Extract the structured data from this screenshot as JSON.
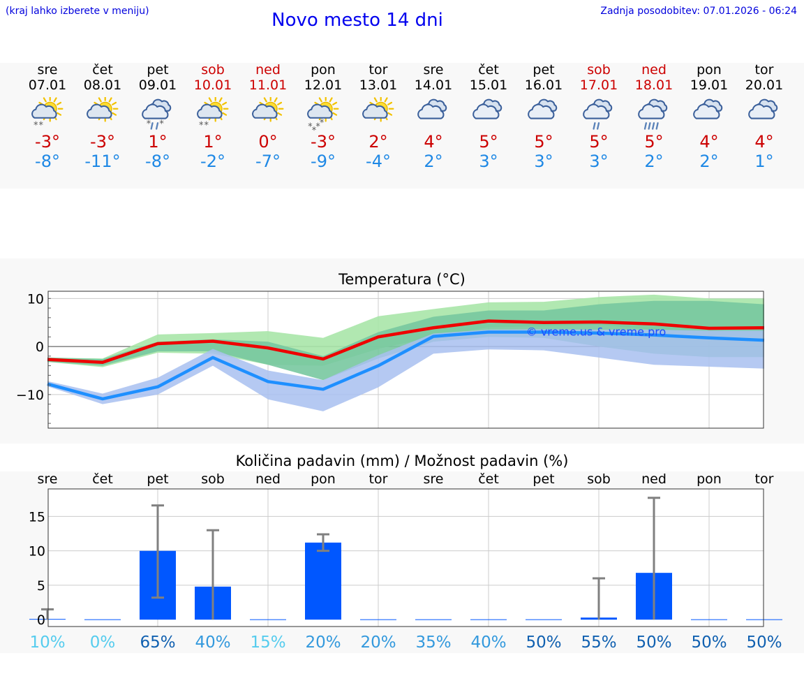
{
  "header": {
    "menu_hint": "(kraj lahko izberete v meniju)",
    "title": "Novo mesto 14 dni",
    "last_update": "Zadnja posodobitev: 07.01.2026 - 06:24"
  },
  "days": [
    {
      "name": "sre",
      "date": "07.01",
      "weekend": false,
      "icon": "sun-cloud-snow-icon",
      "tmax": "-3°",
      "tmin": "-8°"
    },
    {
      "name": "čet",
      "date": "08.01",
      "weekend": false,
      "icon": "sun-cloud-icon",
      "tmax": "-3°",
      "tmin": "-11°"
    },
    {
      "name": "pet",
      "date": "09.01",
      "weekend": false,
      "icon": "cloud-sleet-icon",
      "tmax": "1°",
      "tmin": "-8°"
    },
    {
      "name": "sob",
      "date": "10.01",
      "weekend": true,
      "icon": "sun-cloud-snow-icon",
      "tmax": "1°",
      "tmin": "-2°"
    },
    {
      "name": "ned",
      "date": "11.01",
      "weekend": true,
      "icon": "sun-cloud-icon",
      "tmax": "0°",
      "tmin": "-7°"
    },
    {
      "name": "pon",
      "date": "12.01",
      "weekend": false,
      "icon": "sun-cloud-heavy-snow-icon",
      "tmax": "-3°",
      "tmin": "-9°"
    },
    {
      "name": "tor",
      "date": "13.01",
      "weekend": false,
      "icon": "sun-cloud-icon",
      "tmax": "2°",
      "tmin": "-4°"
    },
    {
      "name": "sre",
      "date": "14.01",
      "weekend": false,
      "icon": "cloud-icon",
      "tmax": "4°",
      "tmin": "2°"
    },
    {
      "name": "čet",
      "date": "15.01",
      "weekend": false,
      "icon": "cloud-icon",
      "tmax": "5°",
      "tmin": "3°"
    },
    {
      "name": "pet",
      "date": "16.01",
      "weekend": false,
      "icon": "cloud-icon",
      "tmax": "5°",
      "tmin": "3°"
    },
    {
      "name": "sob",
      "date": "17.01",
      "weekend": true,
      "icon": "cloud-rain-icon",
      "tmax": "5°",
      "tmin": "3°"
    },
    {
      "name": "ned",
      "date": "18.01",
      "weekend": true,
      "icon": "cloud-heavy-rain-icon",
      "tmax": "5°",
      "tmin": "2°"
    },
    {
      "name": "pon",
      "date": "19.01",
      "weekend": false,
      "icon": "cloud-icon",
      "tmax": "4°",
      "tmin": "2°"
    },
    {
      "name": "tor",
      "date": "20.01",
      "weekend": false,
      "icon": "cloud-icon",
      "tmax": "4°",
      "tmin": "1°"
    }
  ],
  "colors": {
    "max_line": "#ee0000",
    "min_line": "#1e8fff",
    "max_band_outer": "#a8e6a8",
    "max_band_inner": "#78c8a0",
    "min_band": "#a8c0f0",
    "bar": "#0057ff",
    "errorbar": "#808080",
    "pct_low": "#55ccee",
    "pct_mid": "#3399dd",
    "pct_high": "#1060b0"
  },
  "chart_data": [
    {
      "type": "line",
      "title": "Temperatura (°C)",
      "watermark": "© vreme.us & vreme.pro",
      "ylim": [
        -17,
        11.5
      ],
      "yticks": [
        10,
        0,
        -10
      ],
      "ytick_labels": [
        "10",
        "0",
        "−10"
      ],
      "x": [
        0,
        1,
        2,
        3,
        4,
        5,
        6,
        7,
        8,
        9,
        10,
        11,
        12,
        13
      ],
      "series": [
        {
          "name": "max",
          "values": [
            -2.7,
            -3.3,
            0.6,
            1.1,
            -0.3,
            -2.6,
            2.0,
            3.9,
            5.3,
            5.0,
            5.1,
            4.7,
            3.8,
            3.9
          ]
        },
        {
          "name": "min",
          "values": [
            -7.8,
            -10.9,
            -8.4,
            -2.3,
            -7.3,
            -8.9,
            -4.0,
            2.1,
            3.0,
            3.0,
            2.8,
            2.4,
            1.8,
            1.3
          ]
        }
      ],
      "bands": [
        {
          "name": "max_outer",
          "low": [
            -3.2,
            -4.3,
            -1.3,
            -1.5,
            -3.8,
            -4.0,
            -0.5,
            2.0,
            4.0,
            4.2,
            4.5,
            3.5,
            3.0,
            3.0
          ],
          "high": [
            -2.3,
            -2.5,
            2.5,
            2.8,
            3.2,
            1.8,
            6.3,
            7.8,
            9.2,
            9.3,
            10.3,
            10.8,
            10.0,
            10.0
          ]
        },
        {
          "name": "max_inner",
          "low": [
            -3.2,
            -4.0,
            -1.0,
            -1.0,
            -3.8,
            -7.0,
            -2.5,
            1.0,
            2.0,
            1.8,
            0.0,
            -1.5,
            -2.2,
            -2.2
          ],
          "high": [
            -2.3,
            -2.6,
            1.0,
            1.5,
            1.0,
            -2.0,
            3.0,
            6.2,
            7.5,
            7.5,
            8.8,
            9.5,
            9.5,
            8.8
          ]
        },
        {
          "name": "min_band",
          "low": [
            -8.3,
            -12.0,
            -10.0,
            -4.0,
            -11.0,
            -13.5,
            -8.5,
            -1.5,
            -0.6,
            -0.8,
            -2.3,
            -3.8,
            -4.2,
            -4.6
          ],
          "high": [
            -7.2,
            -9.8,
            -6.5,
            -0.5,
            -5.0,
            -7.0,
            -1.8,
            2.7,
            3.5,
            3.6,
            3.5,
            3.5,
            3.3,
            3.3
          ]
        }
      ]
    },
    {
      "type": "bar",
      "title": "Količina padavin (mm) / Možnost padavin (%)",
      "categories": [
        "sre",
        "čet",
        "pet",
        "sob",
        "ned",
        "pon",
        "tor",
        "sre",
        "čet",
        "pet",
        "sob",
        "ned",
        "pon",
        "tor"
      ],
      "ylim": [
        -1,
        19
      ],
      "yticks": [
        15,
        10,
        5,
        0
      ],
      "ytick_labels": [
        "15",
        "10",
        "5",
        "0"
      ],
      "values": [
        0.1,
        0,
        10,
        4.8,
        0,
        11.2,
        0,
        0,
        0,
        0,
        0.3,
        6.8,
        0,
        0
      ],
      "err_low": [
        0,
        0,
        3.2,
        0,
        0,
        10.0,
        0,
        0,
        0,
        0,
        0,
        0,
        0,
        0
      ],
      "err_high": [
        1.5,
        0,
        16.6,
        13.0,
        0,
        12.4,
        0,
        0,
        0,
        0,
        6.0,
        17.7,
        0,
        0
      ],
      "probability_labels": [
        "10%",
        "0%",
        "65%",
        "40%",
        "15%",
        "20%",
        "20%",
        "35%",
        "40%",
        "50%",
        "55%",
        "50%",
        "50%",
        "50%"
      ],
      "probabilities": [
        10,
        0,
        65,
        40,
        15,
        20,
        20,
        35,
        40,
        50,
        55,
        50,
        50,
        50
      ]
    }
  ]
}
